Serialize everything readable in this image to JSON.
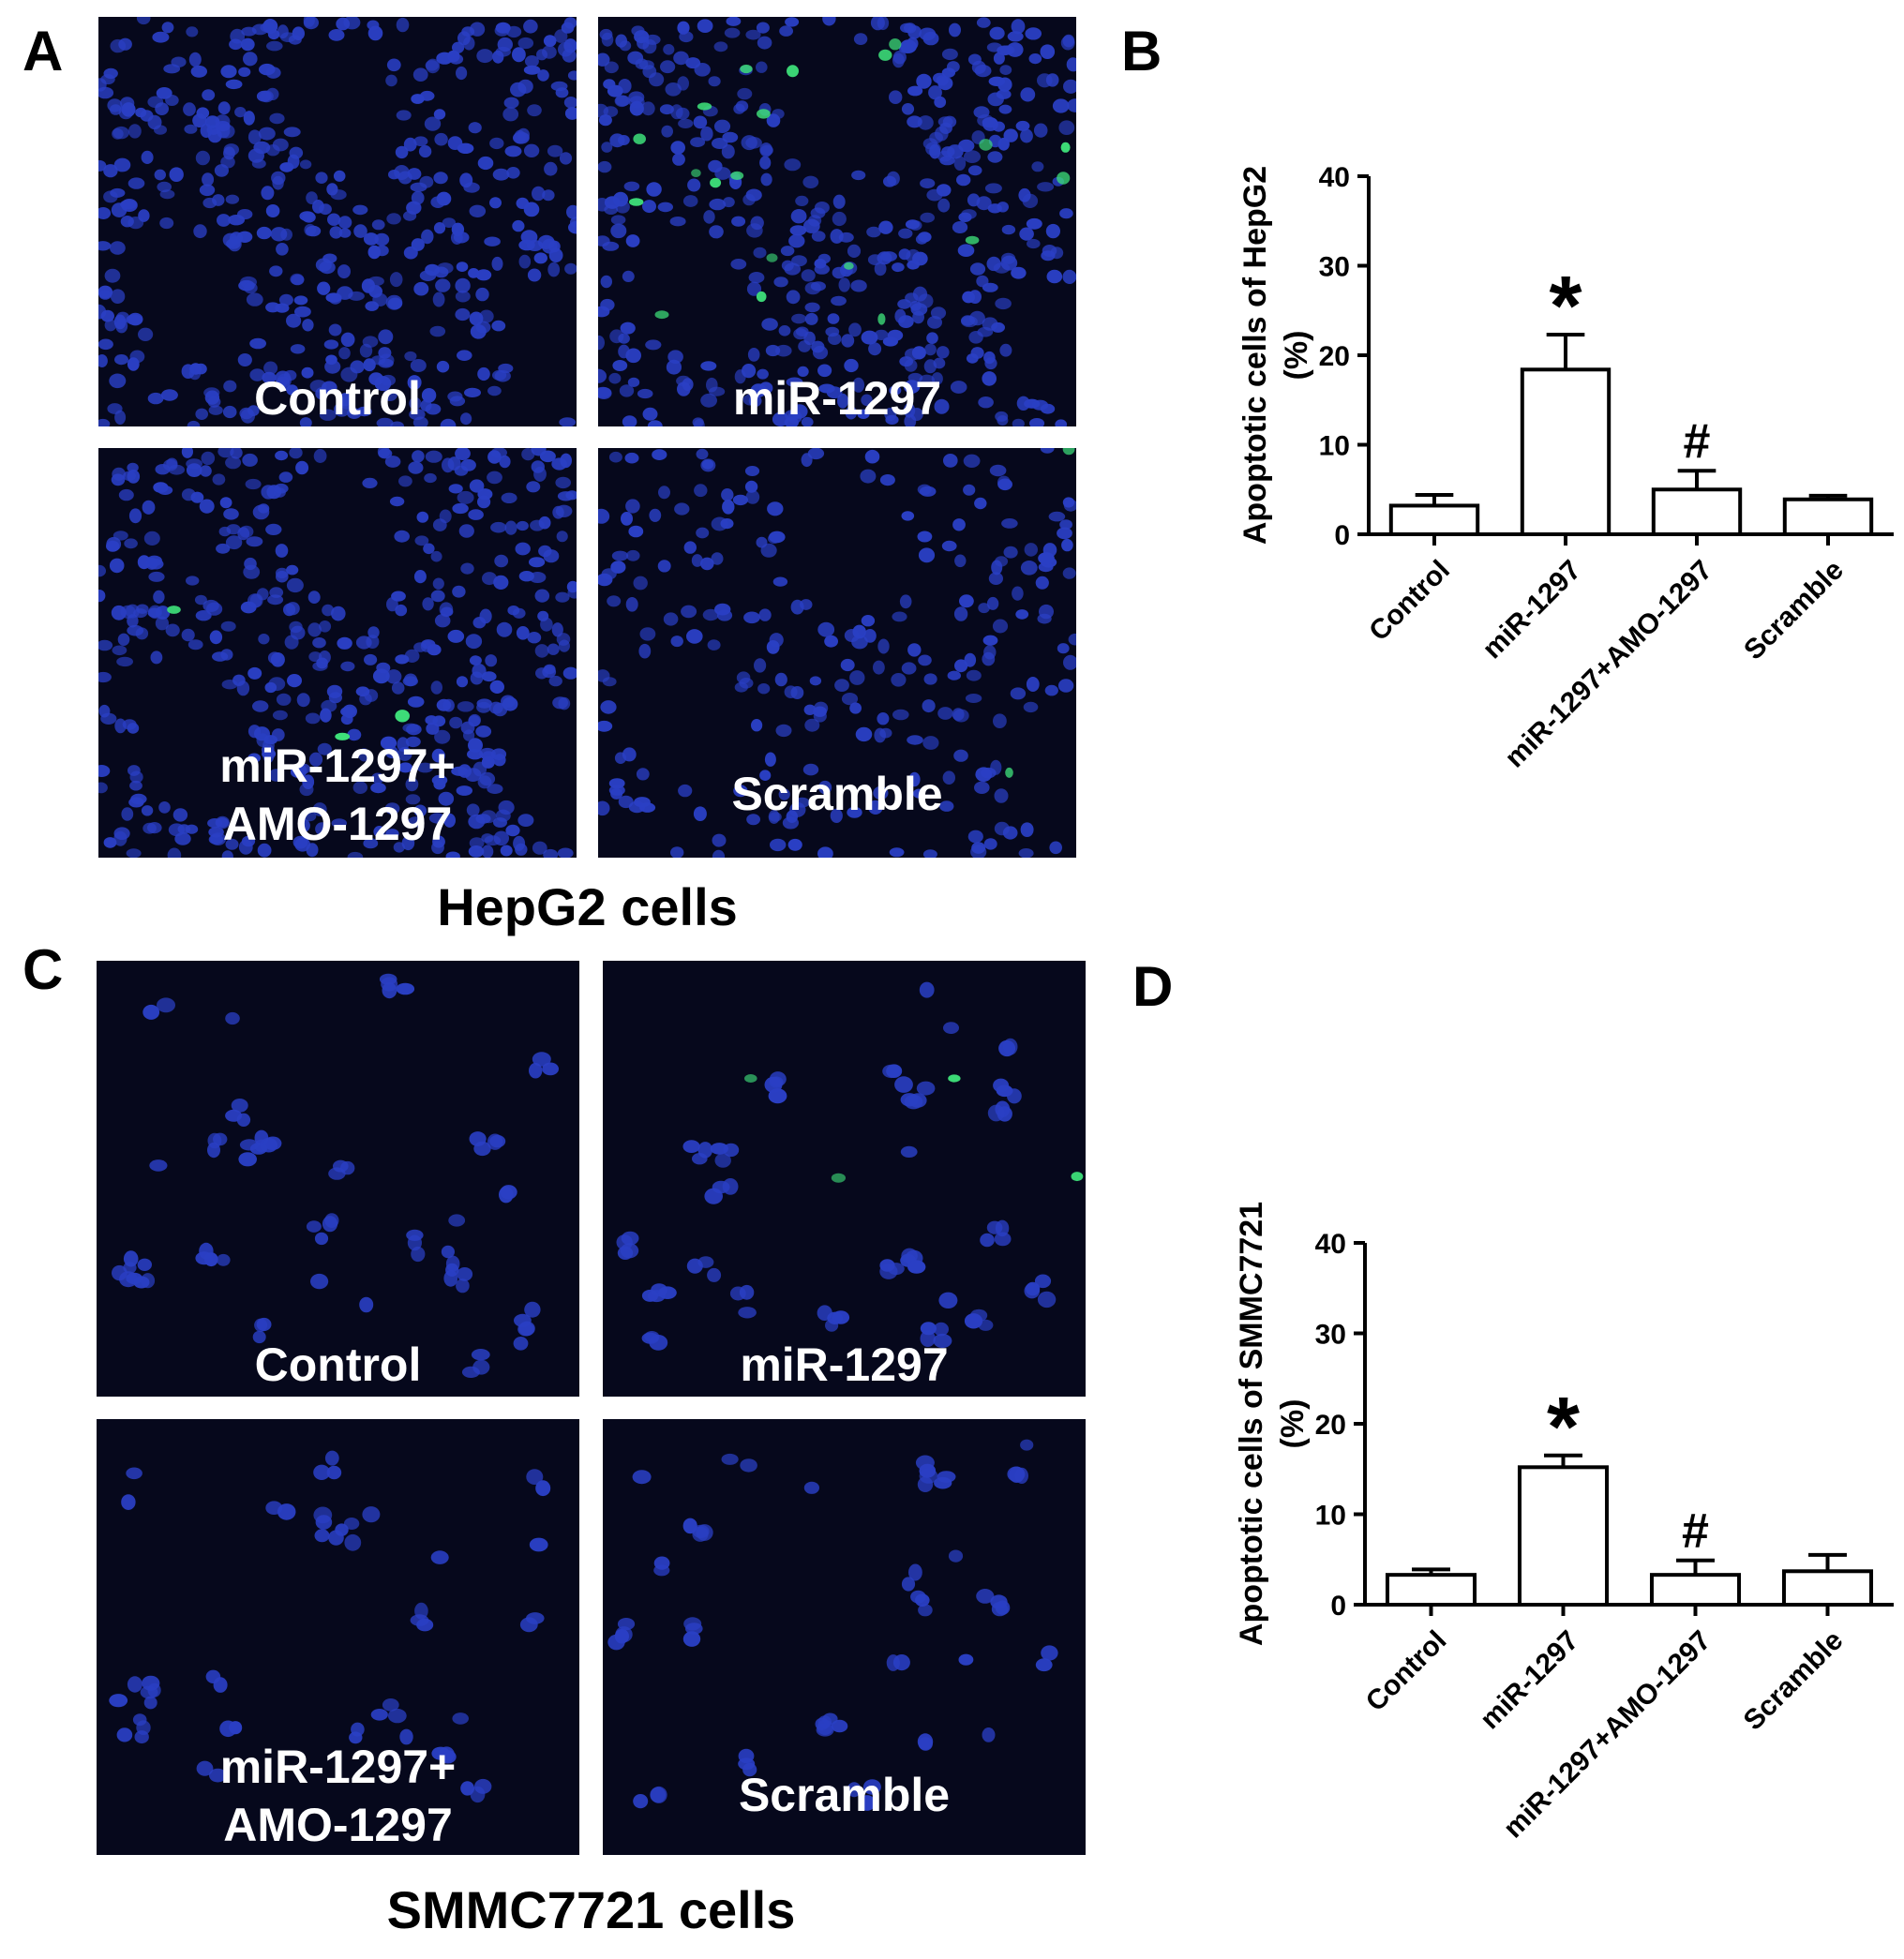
{
  "panels": {
    "A": "A",
    "B": "B",
    "C": "C",
    "D": "D"
  },
  "hepg2_images": {
    "caption": "HepG2 cells",
    "images": [
      {
        "label_lines": [
          "Control"
        ]
      },
      {
        "label_lines": [
          "miR-1297"
        ]
      },
      {
        "label_lines": [
          "miR-1297+",
          "AMO-1297"
        ]
      },
      {
        "label_lines": [
          "Scramble"
        ]
      }
    ]
  },
  "smmc_images": {
    "caption": "SMMC7721 cells",
    "images": [
      {
        "label_lines": [
          "Control"
        ]
      },
      {
        "label_lines": [
          "miR-1297"
        ]
      },
      {
        "label_lines": [
          "miR-1297+",
          "AMO-1297"
        ]
      },
      {
        "label_lines": [
          "Scramble"
        ]
      }
    ]
  },
  "colors": {
    "nucleus": "#2a3fc4",
    "apoptotic": "#3ee07a",
    "background": "#06081c"
  },
  "chart_data": [
    {
      "type": "bar",
      "panel": "B",
      "categories": [
        "Control",
        "miR-1297",
        "miR-1297+AMO-1297",
        "Scramble"
      ],
      "values": [
        3.2,
        18.4,
        5.0,
        3.9
      ],
      "errors": [
        1.2,
        3.9,
        2.1,
        0.4
      ],
      "annotations": [
        "",
        "*",
        "#",
        ""
      ],
      "ylabel_lines": [
        "Apoptotic cells of HepG2",
        "(%)"
      ],
      "ylim": [
        0,
        40
      ],
      "yticks": [
        0,
        10,
        20,
        30,
        40
      ]
    },
    {
      "type": "bar",
      "panel": "D",
      "categories": [
        "Control",
        "miR-1297",
        "miR-1297+AMO-1297",
        "Scramble"
      ],
      "values": [
        3.3,
        15.2,
        3.3,
        3.7
      ],
      "errors": [
        0.6,
        1.3,
        1.6,
        1.8
      ],
      "annotations": [
        "",
        "*",
        "#",
        ""
      ],
      "ylabel_lines": [
        "Apoptotic cells of SMMC7721",
        "(%)"
      ],
      "ylim": [
        0,
        40
      ],
      "yticks": [
        0,
        10,
        20,
        30,
        40
      ]
    }
  ]
}
